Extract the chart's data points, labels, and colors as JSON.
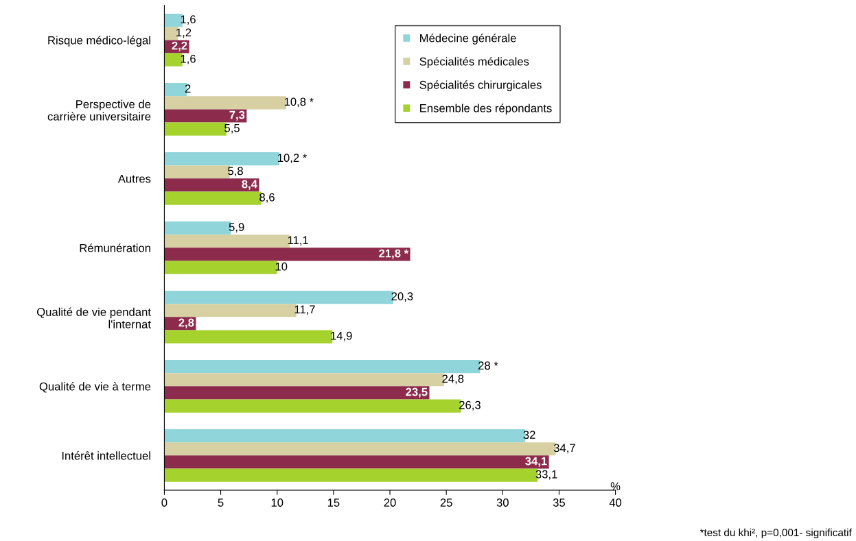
{
  "chart_data": {
    "type": "bar",
    "orientation": "horizontal",
    "xlabel": "%",
    "categories": [
      "Risque médico-légal",
      "Perspective de\ncarrière universitaire",
      "Autres",
      "Rémunération",
      "Qualité de vie pendant\nl'internat",
      "Qualité de vie à terme",
      "Intérêt intellectuel"
    ],
    "series": [
      {
        "name": "Médecine générale",
        "color": "#8fd5da",
        "values": [
          1.6,
          2,
          10.2,
          5.9,
          20.3,
          28,
          32
        ],
        "value_labels": [
          "1,6",
          "2",
          "10,2 *",
          "5,9",
          "20,3",
          "28 *",
          "32"
        ]
      },
      {
        "name": "Spécialités médicales",
        "color": "#d6d0a2",
        "values": [
          1.2,
          10.8,
          5.8,
          11.1,
          11.7,
          24.8,
          34.7
        ],
        "value_labels": [
          "1,2",
          "10,8 *",
          "5,8",
          "11,1",
          "11,7",
          "24,8",
          "34,7"
        ]
      },
      {
        "name": "Spécialités chirurgicales",
        "color": "#8c2b4c",
        "values": [
          2.2,
          7.3,
          8.4,
          21.8,
          2.8,
          23.5,
          34.1
        ],
        "value_labels": [
          "2,2",
          "7,3",
          "8,4",
          "21,8 *",
          "2,8",
          "23,5",
          "34,1"
        ]
      },
      {
        "name": "Ensemble des répondants",
        "color": "#a6d22e",
        "values": [
          1.6,
          5.5,
          8.6,
          10,
          14.9,
          26.3,
          33.1
        ],
        "value_labels": [
          "1,6",
          "5,5",
          "8,6",
          "10",
          "14,9",
          "26,3",
          "33,1"
        ]
      }
    ],
    "xlim": [
      0,
      40
    ],
    "xticks": [
      0,
      5,
      10,
      15,
      20,
      25,
      30,
      35,
      40
    ],
    "legend": "top right",
    "grid": false,
    "annotations": [
      "*test du khi², p=0,001- significatif"
    ]
  }
}
